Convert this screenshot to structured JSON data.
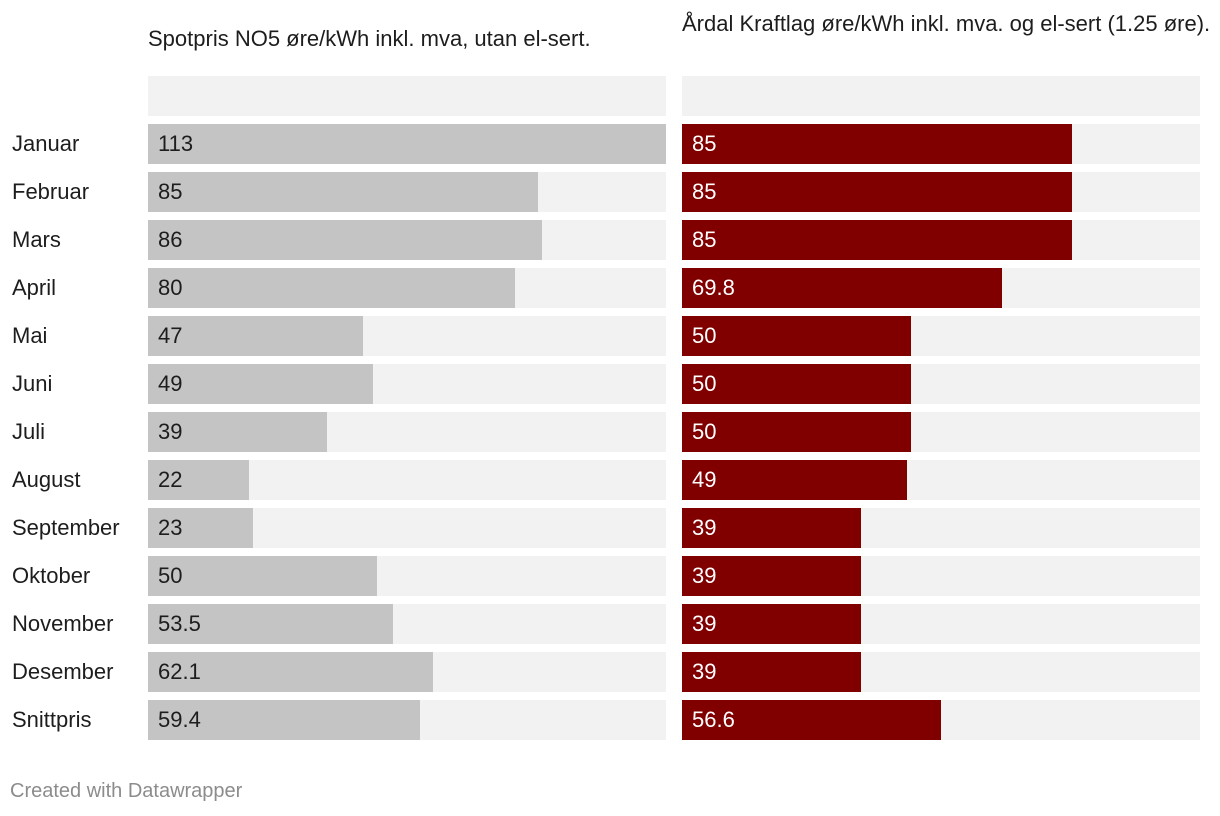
{
  "chart_data": {
    "type": "bar",
    "categories": [
      "Januar",
      "Februar",
      "Mars",
      "April",
      "Mai",
      "Juni",
      "Juli",
      "August",
      "September",
      "Oktober",
      "November",
      "Desember",
      "Snittpris"
    ],
    "series": [
      {
        "name": "Spotpris NO5 øre/kWh inkl. mva, utan el-sert.",
        "values": [
          113,
          85,
          86,
          80,
          47,
          49,
          39,
          22,
          23,
          50,
          53.5,
          62.1,
          59.4
        ],
        "color": "#c4c4c4",
        "text_color": "#1d1d1d",
        "max": 113
      },
      {
        "name": "Årdal Kraftlag øre/kWh inkl. mva. og el-sert (1.25 øre).",
        "values": [
          85,
          85,
          85,
          69.8,
          50,
          50,
          50,
          49,
          39,
          39,
          39,
          39,
          56.6
        ],
        "color": "#800000",
        "text_color": "#ffffff",
        "max": 113
      }
    ],
    "value_labels": [
      [
        "113",
        "85",
        "86",
        "80",
        "47",
        "49",
        "39",
        "22",
        "23",
        "50",
        "53.5",
        "62.1",
        "59.4"
      ],
      [
        "85",
        "85",
        "85",
        "69.8",
        "50",
        "50",
        "50",
        "49",
        "39",
        "39",
        "39",
        "39",
        "56.6"
      ]
    ],
    "track_color": "#f2f2f2"
  },
  "footer": {
    "credit": "Created with Datawrapper"
  }
}
